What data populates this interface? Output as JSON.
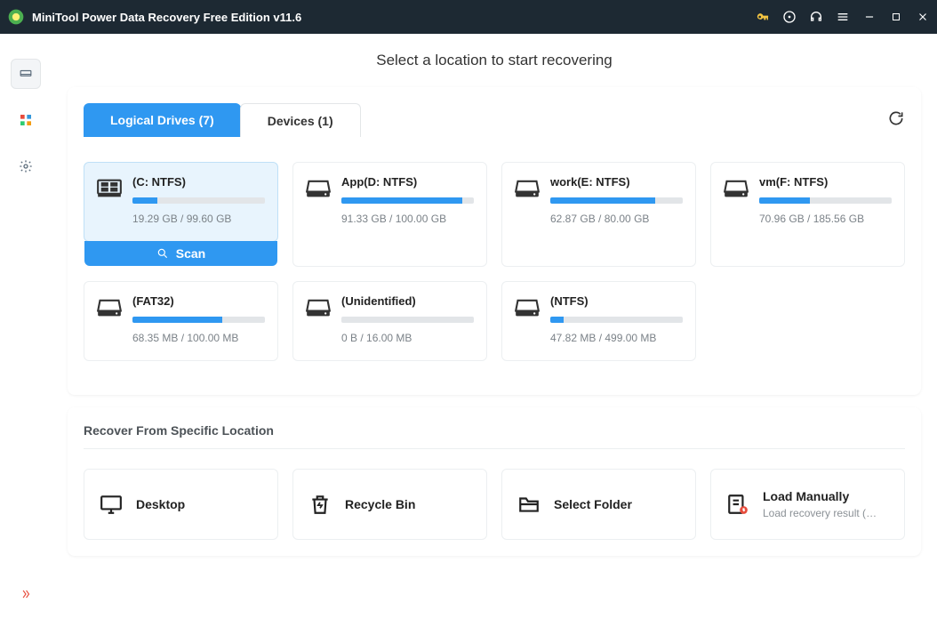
{
  "window": {
    "title": "MiniTool Power Data Recovery Free Edition v11.6"
  },
  "page": {
    "heading": "Select a location to start recovering",
    "tabs": [
      {
        "label": "Logical Drives (7)",
        "active": true
      },
      {
        "label": "Devices (1)",
        "active": false
      }
    ],
    "scan_label": "Scan",
    "drives": [
      {
        "label": "(C: NTFS)",
        "size_text": "19.29 GB / 99.60 GB",
        "fill_pct": 19,
        "bar_color": "#2f98f1",
        "selected": true,
        "icon": "windows"
      },
      {
        "label": "App(D: NTFS)",
        "size_text": "91.33 GB / 100.00 GB",
        "fill_pct": 91,
        "bar_color": "#2f98f1",
        "selected": false,
        "icon": "drive"
      },
      {
        "label": "work(E: NTFS)",
        "size_text": "62.87 GB / 80.00 GB",
        "fill_pct": 79,
        "bar_color": "#2f98f1",
        "selected": false,
        "icon": "drive"
      },
      {
        "label": "vm(F: NTFS)",
        "size_text": "70.96 GB / 185.56 GB",
        "fill_pct": 38,
        "bar_color": "#2f98f1",
        "selected": false,
        "icon": "drive"
      },
      {
        "label": "(FAT32)",
        "size_text": "68.35 MB / 100.00 MB",
        "fill_pct": 68,
        "bar_color": "#2f98f1",
        "selected": false,
        "icon": "drive"
      },
      {
        "label": "(Unidentified)",
        "size_text": "0 B / 16.00 MB",
        "fill_pct": 0,
        "bar_color": "#2f98f1",
        "selected": false,
        "icon": "drive"
      },
      {
        "label": "(NTFS)",
        "size_text": "47.82 MB / 499.00 MB",
        "fill_pct": 10,
        "bar_color": "#2f98f1",
        "selected": false,
        "icon": "drive"
      }
    ],
    "specific": {
      "title": "Recover From Specific Location",
      "items": [
        {
          "title": "Desktop",
          "subtitle": "",
          "icon": "desktop"
        },
        {
          "title": "Recycle Bin",
          "subtitle": "",
          "icon": "recycle"
        },
        {
          "title": "Select Folder",
          "subtitle": "",
          "icon": "folder"
        },
        {
          "title": "Load Manually",
          "subtitle": "Load recovery result (*...",
          "icon": "load"
        }
      ]
    }
  },
  "colors": {
    "accent": "#2f98f1",
    "titlebar_bg": "#1d2933",
    "key_icon": "#f4c542",
    "card_border": "#eceff1",
    "selected_bg": "#e8f4fd",
    "text_muted": "#7b8288"
  }
}
